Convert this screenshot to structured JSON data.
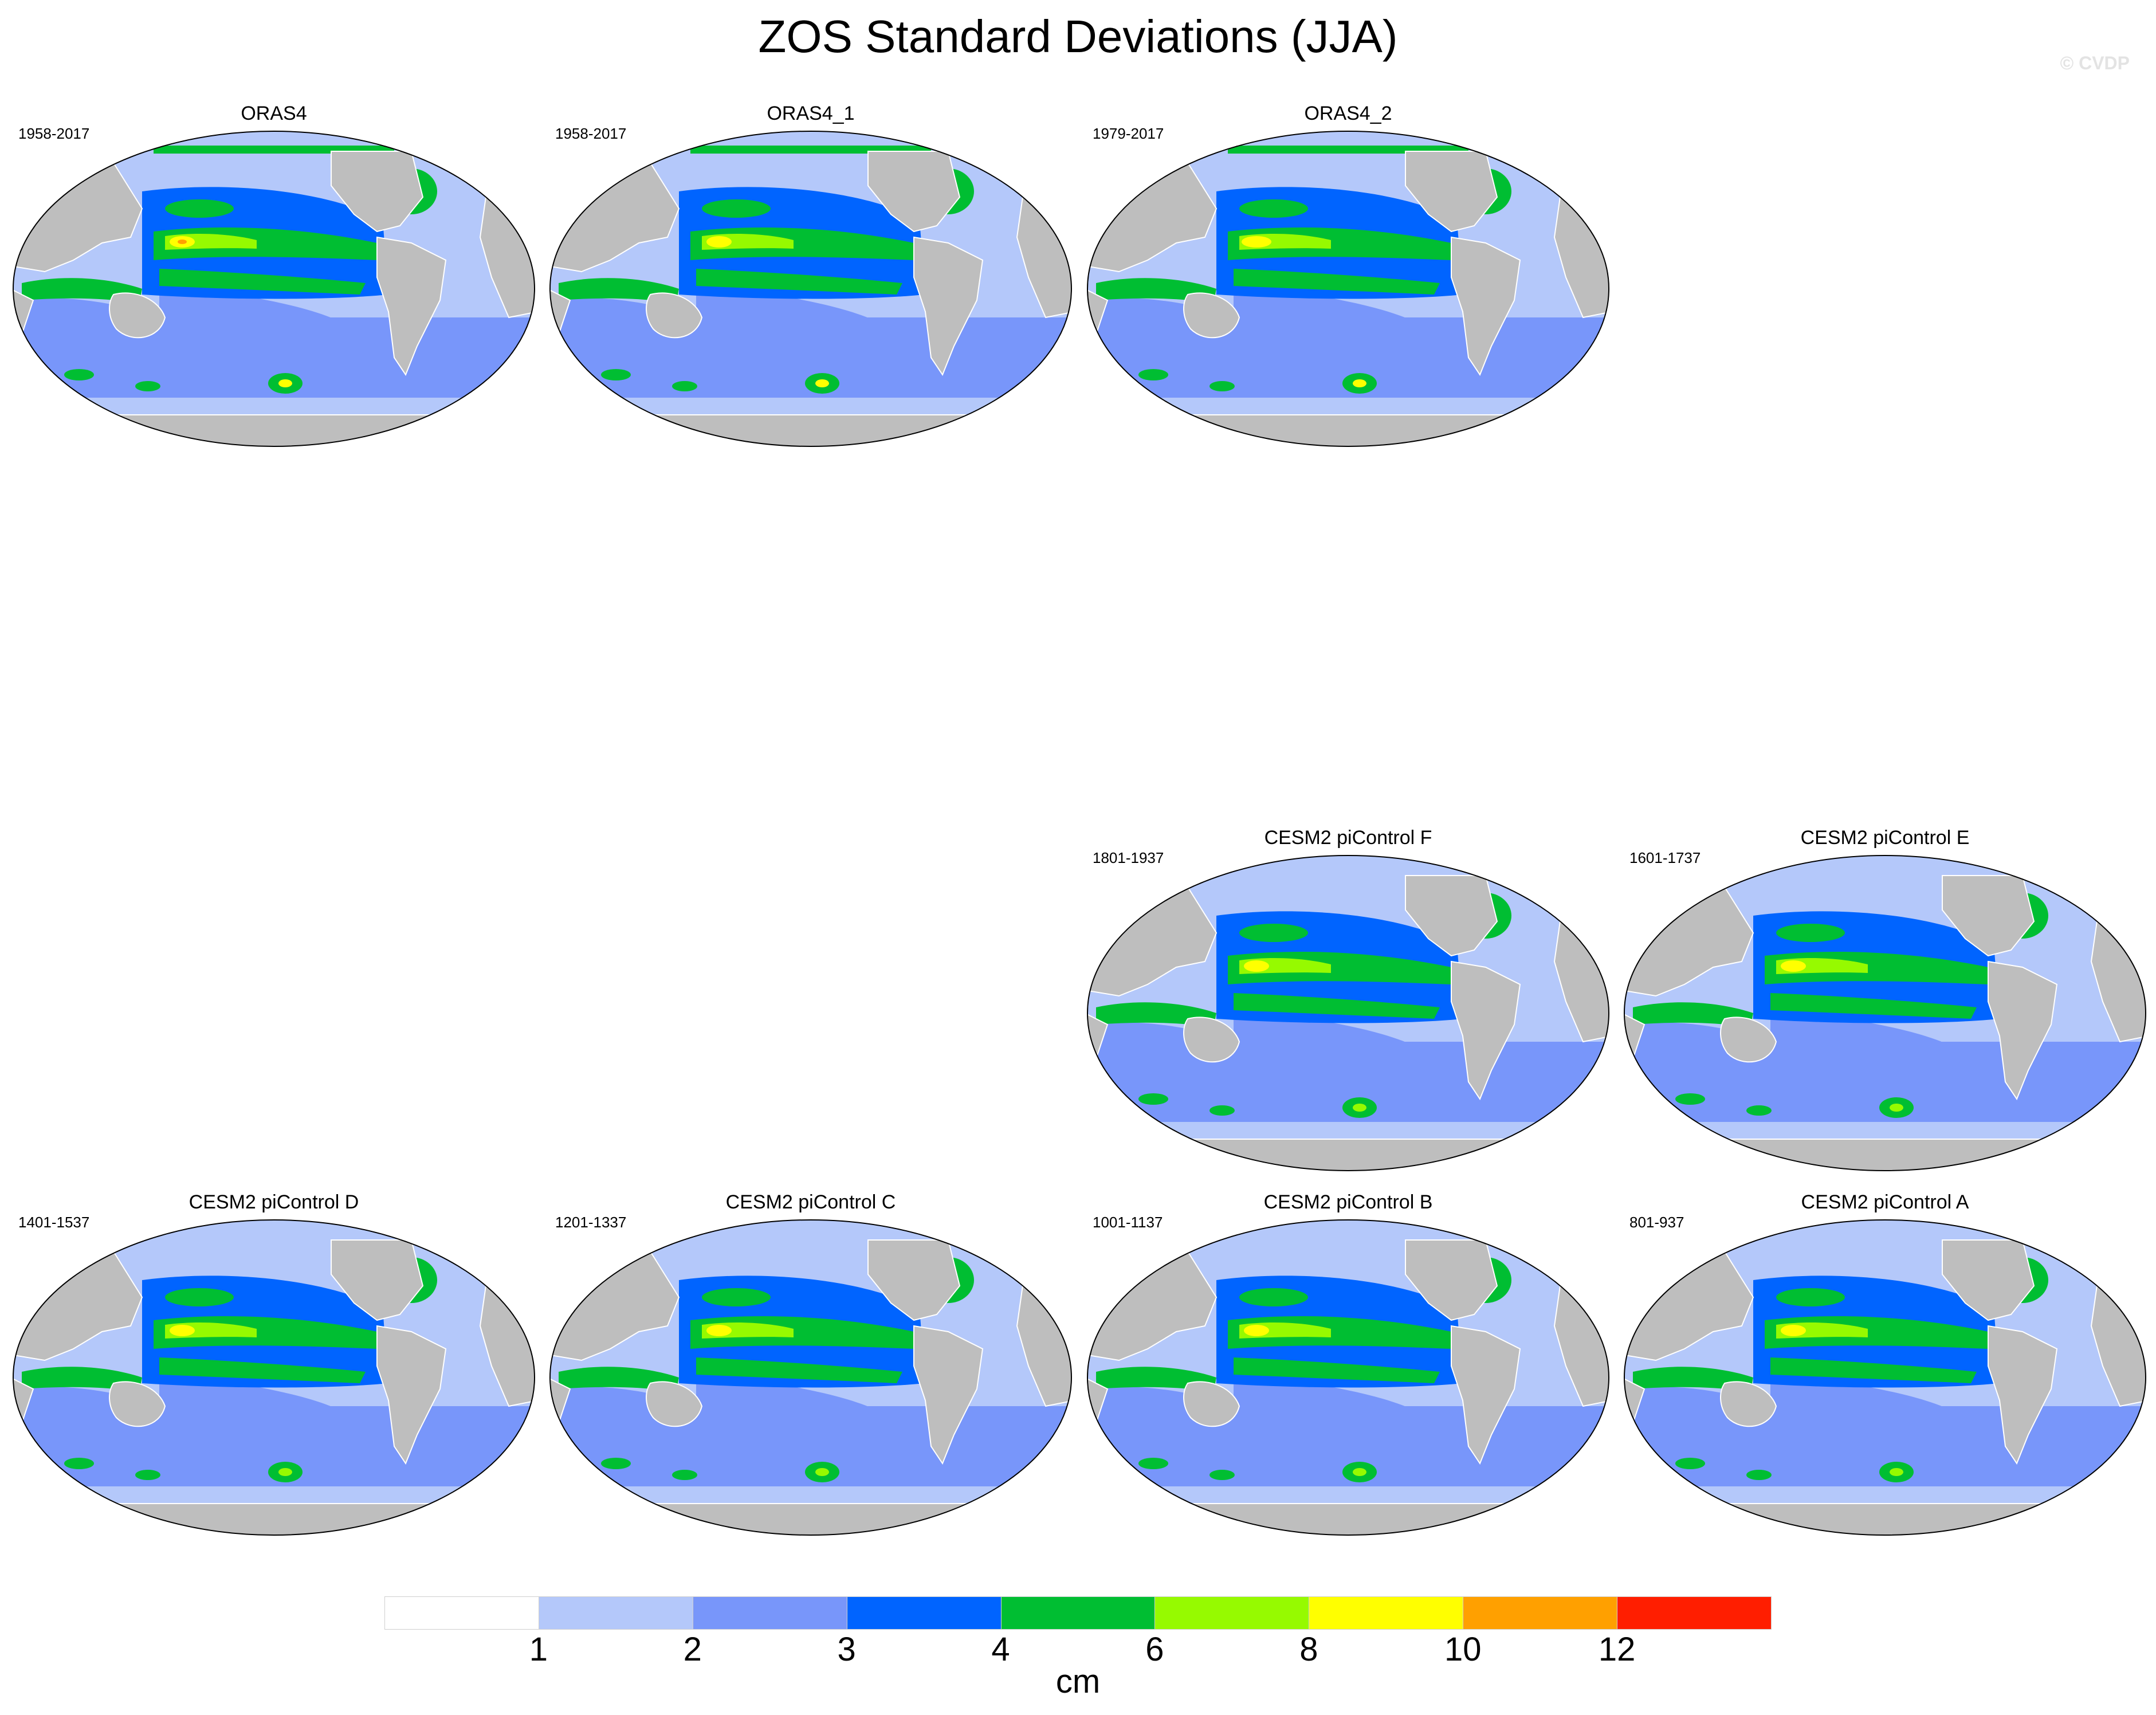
{
  "title": "ZOS Standard Deviations (JJA)",
  "watermark": "© CVDP",
  "panels": [
    {
      "name": "ORAS4",
      "period": "1958-2017"
    },
    {
      "name": "ORAS4_1",
      "period": "1958-2017"
    },
    {
      "name": "ORAS4_2",
      "period": "1979-2017"
    },
    {
      "name": "CESM2 piControl F",
      "period": "1801-1937"
    },
    {
      "name": "CESM2 piControl E",
      "period": "1601-1737"
    },
    {
      "name": "CESM2 piControl D",
      "period": "1401-1537"
    },
    {
      "name": "CESM2 piControl C",
      "period": "1201-1337"
    },
    {
      "name": "CESM2 piControl B",
      "period": "1001-1137"
    },
    {
      "name": "CESM2 piControl A",
      "period": "801-937"
    }
  ],
  "colorbar": {
    "unit": "cm",
    "labels": [
      "1",
      "2",
      "3",
      "4",
      "6",
      "8",
      "10",
      "12"
    ],
    "colors": [
      "#ffffff",
      "#b4c8fa",
      "#7896fa",
      "#0064ff",
      "#00be32",
      "#96fa00",
      "#ffff00",
      "#ffa000",
      "#ff1e00"
    ]
  },
  "colors": {
    "land": "#bebebe",
    "coast": "#ffffff"
  }
}
